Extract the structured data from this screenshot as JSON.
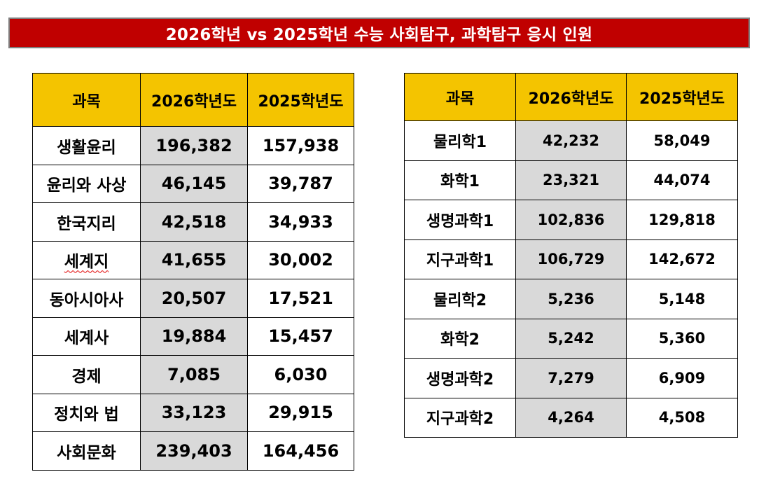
{
  "title": "2026학년 vs 2025학년 수능 사회탐구, 과학탐구 응시 인원",
  "colors": {
    "banner_bg": "#c00000",
    "header_bg": "#f4c400",
    "highlight_col_bg": "#d9d9d9"
  },
  "social_table": {
    "headers": [
      "과목",
      "2026학년도",
      "2025학년도"
    ],
    "rows": [
      {
        "subject": "생활윤리",
        "v2026": "196,382",
        "v2025": "157,938"
      },
      {
        "subject": "윤리와 사상",
        "v2026": "46,145",
        "v2025": "39,787"
      },
      {
        "subject": "한국지리",
        "v2026": "42,518",
        "v2025": "34,933"
      },
      {
        "subject": "세계지",
        "v2026": "41,655",
        "v2025": "30,002"
      },
      {
        "subject": "동아시아사",
        "v2026": "20,507",
        "v2025": "17,521"
      },
      {
        "subject": "세계사",
        "v2026": "19,884",
        "v2025": "15,457"
      },
      {
        "subject": "경제",
        "v2026": "7,085",
        "v2025": "6,030"
      },
      {
        "subject": "정치와 법",
        "v2026": "33,123",
        "v2025": "29,915"
      },
      {
        "subject": "사회문화",
        "v2026": "239,403",
        "v2025": "164,456"
      }
    ]
  },
  "science_table": {
    "headers": [
      "과목",
      "2026학년도",
      "2025학년도"
    ],
    "rows": [
      {
        "subject": "물리학1",
        "v2026": "42,232",
        "v2025": "58,049"
      },
      {
        "subject": "화학1",
        "v2026": "23,321",
        "v2025": "44,074"
      },
      {
        "subject": "생명과학1",
        "v2026": "102,836",
        "v2025": "129,818"
      },
      {
        "subject": "지구과학1",
        "v2026": "106,729",
        "v2025": "142,672"
      },
      {
        "subject": "물리학2",
        "v2026": "5,236",
        "v2025": "5,148"
      },
      {
        "subject": "화학2",
        "v2026": "5,242",
        "v2025": "5,360"
      },
      {
        "subject": "생명과학2",
        "v2026": "7,279",
        "v2025": "6,909"
      },
      {
        "subject": "지구과학2",
        "v2026": "4,264",
        "v2025": "4,508"
      }
    ]
  }
}
